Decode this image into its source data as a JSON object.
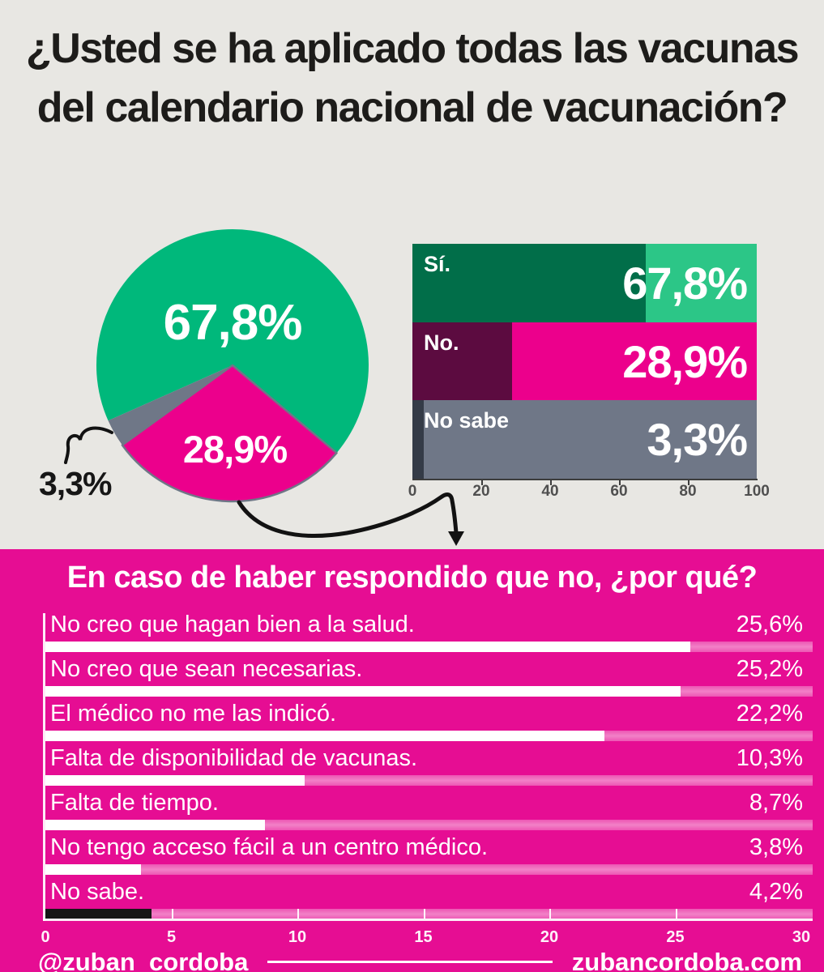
{
  "footer": {
    "handle": "@zuban_cordoba",
    "website": "zubancordoba.com"
  },
  "chart_data": [
    {
      "type": "pie",
      "title": "¿Usted se ha aplicado todas las vacunas del calendario nacional de vacunación?",
      "categories": [
        "Sí.",
        "No.",
        "No sabe"
      ],
      "values": [
        67.8,
        28.9,
        3.3
      ],
      "value_labels": [
        "67,8%",
        "28,9%",
        "3,3%"
      ],
      "colors": [
        "#00b87b",
        "#ec008c",
        "#6f7787"
      ],
      "annotation": "3,3% labeled outside the pie with a squiggle callout; an arrow connects the pie's No slice to the bottom chart"
    },
    {
      "type": "bar",
      "orientation": "horizontal",
      "categories": [
        "Sí.",
        "No.",
        "No sabe"
      ],
      "values": [
        67.8,
        28.9,
        3.3
      ],
      "value_labels": [
        "67,8%",
        "28,9%",
        "3,3%"
      ],
      "xlim": [
        0,
        100
      ],
      "ticks": [
        0,
        20,
        40,
        60,
        80,
        100
      ],
      "bar_colors": [
        "#016e49",
        "#5c0b40",
        "#343b47"
      ],
      "track_colors": [
        "#2cc687",
        "#ec008c",
        "#6f7787"
      ],
      "legend": "none",
      "grid": "off"
    },
    {
      "type": "bar",
      "orientation": "horizontal",
      "title": "En caso de haber respondido que no, ¿por qué?",
      "categories": [
        "No creo que hagan bien a la salud.",
        "No creo que sean necesarias.",
        "El médico no me las indicó.",
        "Falta de disponibilidad de vacunas.",
        "Falta de tiempo.",
        "No tengo acceso fácil a un centro médico.",
        "No sabe."
      ],
      "values": [
        25.6,
        25.2,
        22.2,
        10.3,
        8.7,
        3.8,
        4.2
      ],
      "value_labels": [
        "25,6%",
        "25,2%",
        "22,2%",
        "10,3%",
        "8,7%",
        "3,8%",
        "4,2%"
      ],
      "xlim": [
        0,
        30
      ],
      "ticks": [
        0,
        5,
        10,
        15,
        20,
        25,
        30
      ],
      "bar_colors": [
        "#ffffff",
        "#ffffff",
        "#ffffff",
        "#ffffff",
        "#ffffff",
        "#ffffff",
        "#161616"
      ],
      "track_color": "lighter-pink",
      "background_color": "#e60d93",
      "legend": "none",
      "grid": "off"
    }
  ]
}
